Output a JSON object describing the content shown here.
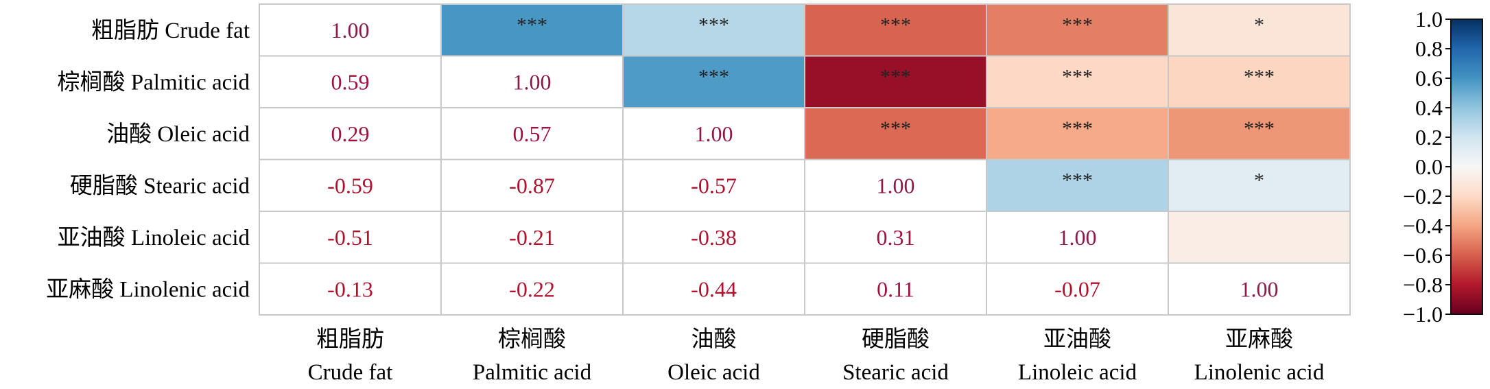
{
  "chart_data": {
    "type": "heatmap",
    "row_labels": [
      "粗脂肪 Crude fat",
      "棕榈酸 Palmitic acid",
      "油酸 Oleic acid",
      "硬脂酸 Stearic acid",
      "亚油酸 Linoleic acid",
      "亚麻酸 Linolenic acid"
    ],
    "col_labels": [
      {
        "zh": "粗脂肪",
        "en": "Crude fat"
      },
      {
        "zh": "棕榈酸",
        "en": "Palmitic acid"
      },
      {
        "zh": "油酸",
        "en": "Oleic acid"
      },
      {
        "zh": "硬脂酸",
        "en": "Stearic acid"
      },
      {
        "zh": "亚油酸",
        "en": "Linoleic acid"
      },
      {
        "zh": "亚麻酸",
        "en": "Linolenic acid"
      }
    ],
    "lower_values": [
      [
        "1.00",
        null,
        null,
        null,
        null,
        null
      ],
      [
        "0.59",
        "1.00",
        null,
        null,
        null,
        null
      ],
      [
        "0.29",
        "0.57",
        "1.00",
        null,
        null,
        null
      ],
      [
        "-0.59",
        "-0.87",
        "-0.57",
        "1.00",
        null,
        null
      ],
      [
        "-0.51",
        "-0.21",
        "-0.38",
        "0.31",
        "1.00",
        null
      ],
      [
        "-0.13",
        "-0.22",
        "-0.44",
        "0.11",
        "-0.07",
        "1.00"
      ]
    ],
    "upper_significance": [
      [
        null,
        "***",
        "***",
        "***",
        "***",
        "*"
      ],
      [
        null,
        null,
        "***",
        "***",
        "***",
        "***"
      ],
      [
        null,
        null,
        null,
        "***",
        "***",
        "***"
      ],
      [
        null,
        null,
        null,
        null,
        "***",
        "*"
      ],
      [
        null,
        null,
        null,
        null,
        null,
        ""
      ],
      [
        null,
        null,
        null,
        null,
        null,
        null
      ]
    ],
    "colorbar": {
      "vmin": -1.0,
      "vmax": 1.0,
      "ticks": [
        "1.0",
        "0.8",
        "0.6",
        "0.4",
        "0.2",
        "0.0",
        "−0.2",
        "−0.4",
        "−0.6",
        "−0.8",
        "−1.0"
      ]
    },
    "colors": {
      "text_positive": "#8b1a4a",
      "text_negative": "#b0122e",
      "grid": "#c8c8c8"
    }
  }
}
